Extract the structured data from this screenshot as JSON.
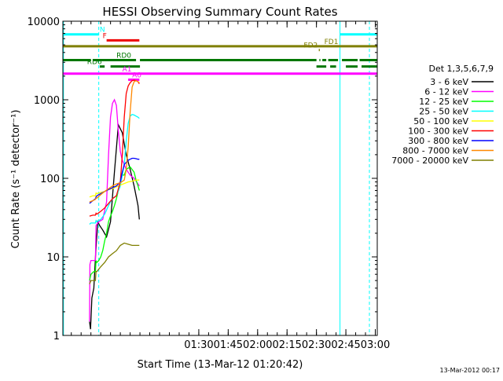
{
  "chart_data": {
    "type": "line",
    "title": "HESSI Observing Summary Count Rates",
    "xlabel": "Start Time (13-Mar-12 01:20:42)",
    "ylabel": "Count Rate (s⁻¹ detector⁻¹)",
    "yscale": "log",
    "ylim": [
      1,
      10000
    ],
    "xlim_minutes": [
      20.7,
      181
    ],
    "yticks": [
      {
        "v": 1,
        "label": "1"
      },
      {
        "v": 10,
        "label": "10"
      },
      {
        "v": 100,
        "label": "100"
      },
      {
        "v": 1000,
        "label": "1000"
      },
      {
        "v": 10000,
        "label": "10000"
      }
    ],
    "xticks": [
      {
        "m": 90,
        "label": "01:30"
      },
      {
        "m": 105,
        "label": "01:45"
      },
      {
        "m": 120,
        "label": "02:00"
      },
      {
        "m": 135,
        "label": "02:15"
      },
      {
        "m": 150,
        "label": "02:30"
      },
      {
        "m": 165,
        "label": "02:45"
      },
      {
        "m": 180,
        "label": "03:00"
      }
    ],
    "legend_title": "Det 1,3,5,6,7,9",
    "legend_placement": "right",
    "series": [
      {
        "name": "3 - 6 keV",
        "color": "#000000",
        "x": [
          34.3,
          34.8,
          35.5,
          36.5,
          37.5,
          38.5,
          39.5,
          41,
          43,
          45,
          47,
          49,
          51,
          53,
          55,
          57,
          59,
          59.7
        ],
        "y": [
          1.5,
          1.2,
          3,
          4,
          12,
          28,
          25,
          22,
          18,
          28,
          120,
          480,
          380,
          200,
          130,
          80,
          45,
          30
        ]
      },
      {
        "name": "6 - 12 keV",
        "color": "#ff00ff",
        "x": [
          34.3,
          34.5,
          35,
          36.5,
          37.3,
          37.6,
          38,
          39,
          41,
          43,
          44,
          45,
          46,
          47,
          48,
          49,
          50,
          51,
          53,
          55,
          57,
          59,
          59.7
        ],
        "y": [
          1.5,
          8,
          9,
          9,
          9,
          25,
          26,
          28,
          30,
          50,
          200,
          600,
          900,
          1000,
          850,
          400,
          220,
          170,
          130,
          110,
          100,
          85,
          80
        ]
      },
      {
        "name": "12 - 25 keV",
        "color": "#00ff00",
        "x": [
          34.3,
          35,
          36.5,
          37.3,
          37.6,
          38,
          39,
          40,
          41,
          42,
          43,
          44,
          45,
          46,
          47,
          48,
          49,
          50,
          51,
          52,
          53,
          55,
          57,
          58,
          59,
          59.7
        ],
        "y": [
          5,
          6,
          6.5,
          6.5,
          9,
          8.5,
          9,
          10,
          12,
          16,
          20,
          28,
          33,
          38,
          45,
          55,
          70,
          90,
          110,
          110,
          130,
          140,
          120,
          95,
          80,
          70
        ]
      },
      {
        "name": "25 - 50 keV",
        "color": "#00ffff",
        "x": [
          34.3,
          35,
          36.5,
          37.3,
          37.6,
          38,
          40,
          42,
          44,
          45,
          46,
          48,
          50,
          52,
          53,
          54,
          55,
          56,
          57,
          58,
          59,
          59.7
        ],
        "y": [
          26,
          27,
          27,
          27,
          29,
          28,
          30,
          35,
          45,
          50,
          55,
          60,
          80,
          150,
          300,
          500,
          620,
          650,
          640,
          620,
          600,
          580
        ]
      },
      {
        "name": "50 - 100 keV",
        "color": "#ffff00",
        "x": [
          34.3,
          36,
          37.3,
          37.6,
          38,
          40,
          42,
          44,
          46,
          48,
          50,
          52,
          54,
          56,
          58,
          59.7
        ],
        "y": [
          58,
          60,
          60,
          65,
          64,
          66,
          68,
          72,
          74,
          78,
          82,
          86,
          90,
          92,
          95,
          95
        ]
      },
      {
        "name": "100 - 300 keV",
        "color": "#ff0000",
        "x": [
          34.3,
          36,
          37.3,
          37.6,
          38,
          40,
          42,
          44,
          46,
          48,
          50,
          51,
          52,
          53,
          54,
          55,
          56,
          57,
          58,
          59,
          59.7
        ],
        "y": [
          33,
          34,
          34,
          36,
          35,
          38,
          42,
          48,
          55,
          60,
          90,
          200,
          600,
          1200,
          1500,
          1650,
          1750,
          1780,
          1750,
          1700,
          1600
        ]
      },
      {
        "name": "300 - 800 keV",
        "color": "#0000ff",
        "x": [
          34.3,
          36,
          37.3,
          37.6,
          38,
          40,
          42,
          44,
          46,
          48,
          50,
          51,
          52,
          53,
          54,
          55,
          56,
          57,
          58,
          59,
          59.7
        ],
        "y": [
          48,
          52,
          55,
          58,
          60,
          64,
          68,
          72,
          76,
          80,
          90,
          120,
          150,
          160,
          170,
          175,
          180,
          180,
          178,
          175,
          175
        ]
      },
      {
        "name": "800 - 7000 keV",
        "color": "#ff8800",
        "x": [
          34.3,
          36,
          37.3,
          37.6,
          38,
          40,
          42,
          44,
          46,
          48,
          50,
          52,
          53,
          54,
          55,
          56,
          57,
          58,
          59,
          59.7
        ],
        "y": [
          50,
          52,
          54,
          56,
          56,
          62,
          68,
          74,
          80,
          85,
          88,
          95,
          130,
          250,
          700,
          1450,
          1700,
          1750,
          1700,
          1650
        ]
      },
      {
        "name": "7000 - 20000 keV",
        "color": "#7f7f00",
        "x": [
          34.3,
          35,
          36.5,
          37.3,
          37.6,
          38,
          40,
          42,
          44,
          46,
          48,
          50,
          52,
          54,
          56,
          58,
          59.7
        ],
        "y": [
          4.5,
          5,
          5,
          5,
          6.5,
          6.5,
          7.5,
          8.5,
          10,
          11,
          12,
          14,
          15,
          14.5,
          14,
          14,
          14
        ]
      }
    ],
    "flags": [
      {
        "label": "N",
        "color": "#00ffff",
        "segments": [
          [
            20.7,
            39
          ],
          [
            162,
            181
          ]
        ],
        "y": 6800,
        "label_at": 39.5
      },
      {
        "label": "F",
        "color": "#ee0000",
        "segments": [
          [
            43,
            59.7
          ]
        ],
        "y": 5700,
        "label_at": 41
      },
      {
        "label": "FD1",
        "color": "#7f7f00",
        "segments": [
          [
            20.7,
            181
          ]
        ],
        "y": 4800,
        "label_at": 154
      },
      {
        "label": "FD2",
        "color": "#7f7f00",
        "segments": [
          [
            151.2,
            151.7
          ]
        ],
        "y": 4300,
        "label_at": 143.5
      },
      {
        "label": "RD0",
        "color": "#007700",
        "segments": [
          [
            20.7,
            35
          ],
          [
            36,
            58
          ],
          [
            60,
            150
          ],
          [
            151.5,
            152
          ],
          [
            153,
            155
          ],
          [
            156,
            161
          ],
          [
            163,
            171
          ],
          [
            172,
            181
          ]
        ],
        "y": 3200,
        "label_at": 48
      },
      {
        "label": "RD6",
        "color": "#007700",
        "segments": [
          [
            39.5,
            42
          ],
          [
            45,
            60
          ],
          [
            150,
            155
          ],
          [
            157,
            160
          ],
          [
            165,
            171
          ],
          [
            173,
            181
          ]
        ],
        "y": 2650,
        "label_at": 33
      },
      {
        "label": "A1",
        "color": "#ff00ff",
        "segments": [
          [
            20.7,
            181
          ]
        ],
        "y": 2150,
        "label_at": 51
      },
      {
        "label": "A0",
        "color": "#ff00ff",
        "segments": [
          [
            54,
            59.7
          ]
        ],
        "y": 1800,
        "label_at": 56
      }
    ],
    "vlines": [
      {
        "m": 21,
        "color": "#00ffff",
        "style": "solid"
      },
      {
        "m": 39,
        "color": "#00ffff",
        "style": "dashed"
      },
      {
        "m": 162,
        "color": "#00ffff",
        "style": "solid"
      },
      {
        "m": 177,
        "color": "#00ffff",
        "style": "dashed"
      }
    ],
    "footer_date": "13-Mar-2012 00:17"
  }
}
